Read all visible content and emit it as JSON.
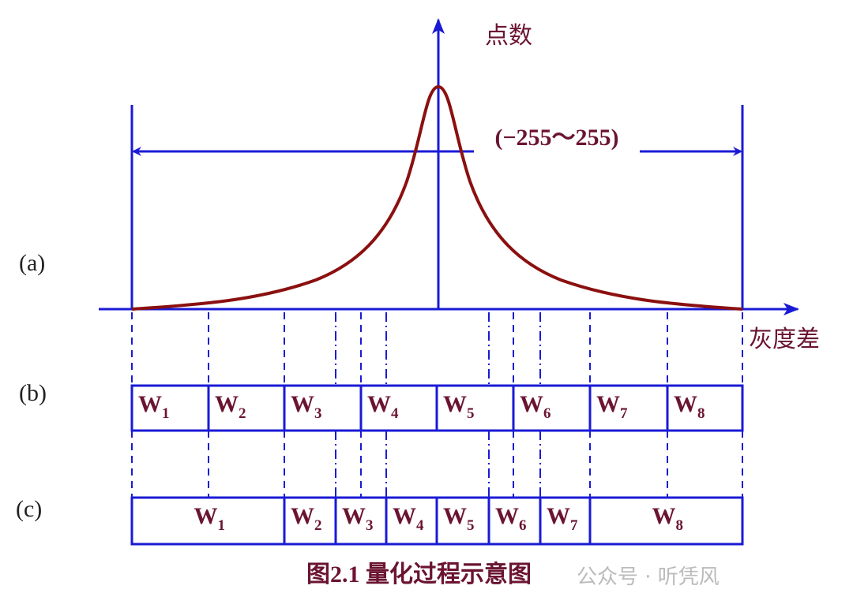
{
  "y_axis_label": "点数",
  "x_axis_label": "灰度差",
  "range_label": "(−255～255)",
  "rows": {
    "a": {
      "label": "(a)"
    },
    "b": {
      "label": "(b)",
      "cells": [
        {
          "main": "W",
          "sub": "1"
        },
        {
          "main": "W",
          "sub": "2"
        },
        {
          "main": "W",
          "sub": "3"
        },
        {
          "main": "W",
          "sub": "4"
        },
        {
          "main": "W",
          "sub": "5"
        },
        {
          "main": "W",
          "sub": "6"
        },
        {
          "main": "W",
          "sub": "7"
        },
        {
          "main": "W",
          "sub": "8"
        }
      ]
    },
    "c": {
      "label": "(c)",
      "cells": [
        {
          "main": "W",
          "sub": "1"
        },
        {
          "main": "W",
          "sub": "2"
        },
        {
          "main": "W",
          "sub": "3"
        },
        {
          "main": "W",
          "sub": "4"
        },
        {
          "main": "W",
          "sub": "5"
        },
        {
          "main": "W",
          "sub": "6"
        },
        {
          "main": "W",
          "sub": "7"
        },
        {
          "main": "W",
          "sub": "8"
        }
      ]
    }
  },
  "caption": "图2.1  量化过程示意图",
  "watermark": "公众号 · 听凭风"
}
